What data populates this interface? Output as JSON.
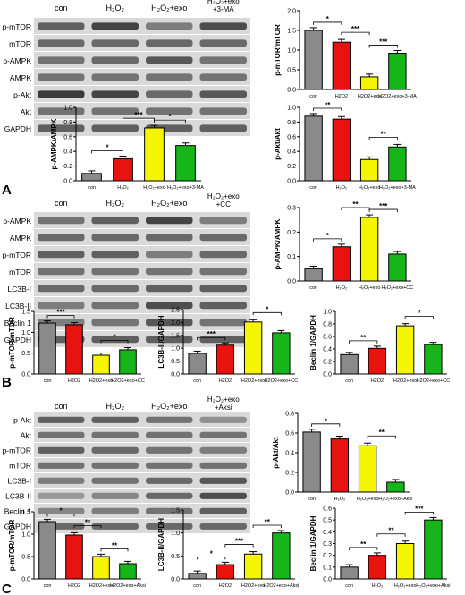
{
  "panel_letters": [
    "A",
    "B",
    "C"
  ],
  "colors": {
    "con": "#8a8a8a",
    "h2o2": "#e8130f",
    "exo": "#f5f500",
    "treat": "#16b51a"
  },
  "blots": [
    {
      "id": "blot-a",
      "headers": [
        "con",
        "H₂O₂",
        "H₂O₂+exo",
        "H₂O₂+exo\n+3-MA"
      ],
      "rows": [
        "p-mTOR",
        "mTOR",
        "p-AMPK",
        "AMPK",
        "p-Akt",
        "Akt",
        "GAPDH"
      ]
    },
    {
      "id": "blot-b",
      "headers": [
        "con",
        "H₂O₂",
        "H₂O₂+exo",
        "H₂O₂+exo\n+CC"
      ],
      "rows": [
        "p-AMPK",
        "AMPK",
        "p-mTOR",
        "mTOR",
        "LC3B-I",
        "LC3B-II",
        "Beclin 1",
        "GAPDH"
      ]
    },
    {
      "id": "blot-c",
      "headers": [
        "con",
        "H₂O₂",
        "H₂O₂+exo",
        "H₂O₂+exo\n+Aksi"
      ],
      "rows": [
        "p-Akt",
        "Akt",
        "p-mTOR",
        "mTOR",
        "LC3B-I",
        "LC3B-II",
        "Beclin 1",
        "GAPDH"
      ]
    }
  ],
  "chart_data": [
    {
      "type": "bar",
      "title": "",
      "ylabel": "p-mTOR/mTOR",
      "categories": [
        "con",
        "H2O2",
        "H2O2+exo",
        "H2O2+exo+3-MA"
      ],
      "values": [
        1.5,
        1.2,
        0.32,
        0.92
      ],
      "ylim": [
        0,
        2.0
      ],
      "yticks": [
        "0.0",
        "0.5",
        "1.0",
        "1.5",
        "2.0"
      ],
      "significance": [
        "*",
        "***",
        "***"
      ]
    },
    {
      "type": "bar",
      "title": "",
      "ylabel": "p-AMPK/AMPK",
      "categories": [
        "con",
        "H₂O₂",
        "H₂O₂+exo",
        "H₂O₂+exo+3-MA"
      ],
      "values": [
        0.1,
        0.3,
        0.72,
        0.48
      ],
      "ylim": [
        0,
        1.0
      ],
      "yticks": [
        "0.0",
        "0.2",
        "0.4",
        "0.6",
        "0.8",
        "1.0"
      ],
      "significance": [
        "*",
        "***",
        "*"
      ]
    },
    {
      "type": "bar",
      "title": "",
      "ylabel": "p-Akt/Akt",
      "categories": [
        "con",
        "H₂O₂",
        "H₂O₂+exo",
        "H₂O₂+exo+3-MA"
      ],
      "values": [
        0.88,
        0.84,
        0.29,
        0.46
      ],
      "ylim": [
        0,
        1.0
      ],
      "yticks": [
        "0.0",
        "0.2",
        "0.4",
        "0.6",
        "0.8",
        "1.0"
      ],
      "significance": [
        "**",
        "**"
      ]
    },
    {
      "type": "bar",
      "title": "",
      "ylabel": "p-AMPK/AMPK",
      "categories": [
        "con",
        "H₂O₂",
        "H₂O₂+exo",
        "H₂O₂+exo+CC"
      ],
      "values": [
        0.05,
        0.14,
        0.26,
        0.11
      ],
      "ylim": [
        0,
        0.3
      ],
      "yticks": [
        "0.0",
        "0.1",
        "0.2",
        "0.3"
      ],
      "significance": [
        "*",
        "**",
        "***"
      ]
    },
    {
      "type": "bar",
      "title": "",
      "ylabel": "p-mTOR/mTOR",
      "categories": [
        "con",
        "H2O2",
        "H2O2+exo",
        "H2O2+exo+CC"
      ],
      "values": [
        1.22,
        1.18,
        0.45,
        0.58
      ],
      "ylim": [
        0,
        1.5
      ],
      "yticks": [
        "0.0",
        "0.5",
        "1.0",
        "1.5"
      ],
      "significance": [
        "***",
        "*"
      ]
    },
    {
      "type": "bar",
      "title": "",
      "ylabel": "LC3B-II/GAPDH",
      "categories": [
        "con",
        "H2O2",
        "H2O2+exo",
        "H2O2+exo+CC"
      ],
      "values": [
        0.8,
        1.12,
        2.02,
        1.6
      ],
      "ylim": [
        0,
        2.5
      ],
      "yticks": [
        "0.0",
        "0.5",
        "1.0",
        "1.5",
        "2.0",
        "2.5"
      ],
      "significance": [
        "***",
        "*"
      ]
    },
    {
      "type": "bar",
      "title": "",
      "ylabel": "Beclin 1/GAPDH",
      "categories": [
        "con",
        "H2O2",
        "H2O2+exo",
        "H2O2+exo+CC"
      ],
      "values": [
        0.31,
        0.41,
        0.77,
        0.47
      ],
      "ylim": [
        0,
        1.0
      ],
      "yticks": [
        "0.0",
        "0.2",
        "0.4",
        "0.6",
        "0.8",
        "1.0"
      ],
      "significance": [
        "**",
        "*"
      ]
    },
    {
      "type": "bar",
      "title": "",
      "ylabel": "p-Akt/Akt",
      "categories": [
        "con",
        "H₂O₂",
        "H₂O₂+exo",
        "H₂O₂+exo+Aksi"
      ],
      "values": [
        0.61,
        0.54,
        0.47,
        0.1
      ],
      "ylim": [
        0,
        0.8
      ],
      "yticks": [
        "0.0",
        "0.2",
        "0.4",
        "0.6",
        "0.8"
      ],
      "significance": [
        "*",
        "**"
      ]
    },
    {
      "type": "bar",
      "title": "",
      "ylabel": "p-mTOR/mTOR",
      "categories": [
        "con",
        "H2O2",
        "H2O2+exo",
        "H2O2+exo+Aksi"
      ],
      "values": [
        1.28,
        0.98,
        0.5,
        0.34
      ],
      "ylim": [
        0,
        1.5
      ],
      "yticks": [
        "0.0",
        "0.5",
        "1.0",
        "1.5"
      ],
      "significance": [
        "*",
        "**",
        "**"
      ]
    },
    {
      "type": "bar",
      "title": "",
      "ylabel": "LC3B-II/GAPDH",
      "categories": [
        "con",
        "H2O2",
        "H2O2+exo",
        "H2O2+exo+Aksi"
      ],
      "values": [
        0.12,
        0.31,
        0.54,
        1.0
      ],
      "ylim": [
        0,
        1.5
      ],
      "yticks": [
        "0.0",
        "0.5",
        "1.0",
        "1.5"
      ],
      "significance": [
        "*",
        "***",
        "**"
      ]
    },
    {
      "type": "bar",
      "title": "",
      "ylabel": "Beclin 1/GAPDH",
      "categories": [
        "con",
        "H₂O₂",
        "H₂O₂+exo",
        "H₂O₂+exo+Aksi"
      ],
      "values": [
        0.1,
        0.2,
        0.3,
        0.5
      ],
      "ylim": [
        0,
        0.6
      ],
      "yticks": [
        "0.0",
        "0.1",
        "0.2",
        "0.3",
        "0.4",
        "0.5",
        "0.6"
      ],
      "significance": [
        "**",
        "**",
        "***"
      ]
    }
  ]
}
